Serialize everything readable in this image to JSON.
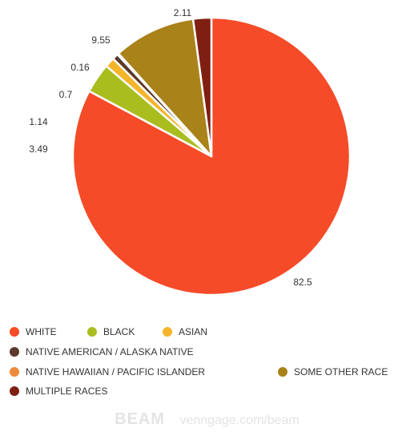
{
  "chart_data": {
    "type": "pie",
    "title": "",
    "slices": [
      {
        "label": "WHITE",
        "value": 82.5,
        "value_label": "82.5",
        "color": "#F54B28"
      },
      {
        "label": "BLACK",
        "value": 3.49,
        "value_label": "3.49",
        "color": "#A9BD1F"
      },
      {
        "label": "ASIAN",
        "value": 1.14,
        "value_label": "1.14",
        "color": "#F5B52A"
      },
      {
        "label": "NATIVE AMERICAN / ALASKA NATIVE",
        "value": 0.7,
        "value_label": "0.7",
        "color": "#5B3A2B"
      },
      {
        "label": "NATIVE HAWAIIAN / PACIFIC ISLANDER",
        "value": 0.16,
        "value_label": "0.16",
        "color": "#EE8A3C"
      },
      {
        "label": "SOME OTHER RACE",
        "value": 9.55,
        "value_label": "9.55",
        "color": "#A9821A"
      },
      {
        "label": "MULTIPLE RACES",
        "value": 2.11,
        "value_label": "2.11",
        "color": "#7F1F12"
      }
    ],
    "legend_position": "bottom",
    "start_angle_degrees": 0,
    "direction": "clockwise"
  },
  "legend": {
    "items": [
      {
        "label": "WHITE",
        "color": "#F54B28"
      },
      {
        "label": "BLACK",
        "color": "#A9BD1F"
      },
      {
        "label": "ASIAN",
        "color": "#F5B52A"
      },
      {
        "label": "NATIVE AMERICAN / ALASKA NATIVE",
        "color": "#5B3A2B"
      },
      {
        "label": "NATIVE HAWAIIAN / PACIFIC ISLANDER",
        "color": "#EE8A3C"
      },
      {
        "label": "SOME OTHER RACE",
        "color": "#A9821A"
      },
      {
        "label": "MULTIPLE RACES",
        "color": "#7F1F12"
      }
    ]
  },
  "footer": {
    "logo": "BEAM",
    "text": "venngage.com/beam"
  }
}
